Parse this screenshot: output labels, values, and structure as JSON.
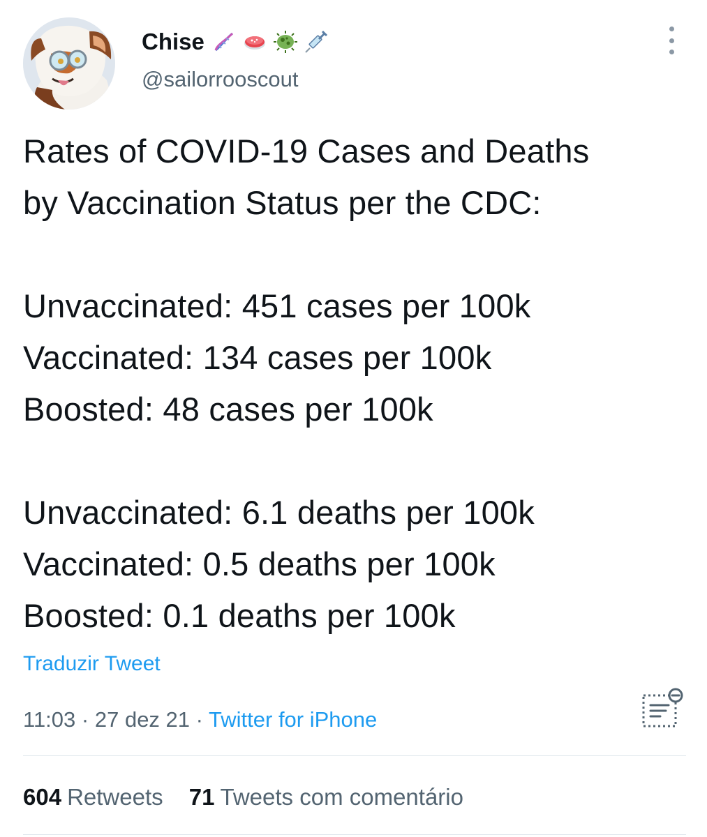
{
  "author": {
    "display_name": "Chise",
    "handle": "@sailorrooscout",
    "name_emojis": [
      "dna-emoji",
      "petri-dish-emoji",
      "microbe-emoji",
      "syringe-emoji"
    ]
  },
  "tweet": {
    "lines": [
      "Rates of COVID-19 Cases and Deaths",
      "by Vaccination Status per the CDC:",
      "",
      "Unvaccinated: 451 cases per 100k",
      "Vaccinated: 134 cases per 100k",
      "Boosted: 48 cases per 100k",
      "",
      "Unvaccinated: 6.1 deaths per 100k",
      "Vaccinated: 0.5 deaths per 100k",
      "Boosted: 0.1 deaths per 100k"
    ],
    "translate_label": "Traduzir Tweet",
    "time": "11:03",
    "separator": "·",
    "date": "27 dez 21",
    "source": "Twitter for iPhone"
  },
  "stats": {
    "retweets_count": "604",
    "retweets_label": "Retweets",
    "quotes_count": "71",
    "quotes_label": "Tweets com comentário"
  },
  "colors": {
    "link": "#1d9bf0",
    "secondary_text": "#536471",
    "primary_text": "#0f1419"
  }
}
